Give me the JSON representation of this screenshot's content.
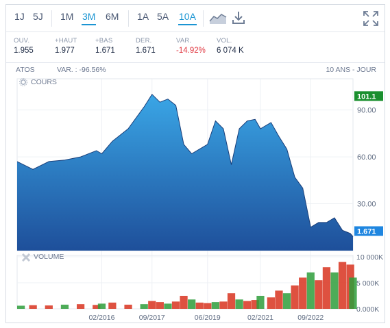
{
  "toolbar": {
    "periods_short": [
      "1J",
      "5J"
    ],
    "periods_mid": [
      "1M",
      "3M",
      "6M"
    ],
    "periods_long": [
      "1A",
      "5A",
      "10A"
    ],
    "active_mid": "3M",
    "active_long": "10A",
    "icons": [
      "chart-type-icon",
      "download-icon",
      "fullscreen-icon"
    ]
  },
  "stats": [
    {
      "label": "OUV.",
      "value": "1.955"
    },
    {
      "label": "+HAUT",
      "value": "1.977"
    },
    {
      "label": "+BAS",
      "value": "1.671"
    },
    {
      "label": "DER.",
      "value": "1.671"
    },
    {
      "label": "VAR.",
      "value": "-14.92%"
    },
    {
      "label": "VOL.",
      "value": "6 074 K"
    }
  ],
  "header": {
    "symbol": "ATOS",
    "variation": "VAR. : -96.56%",
    "range": "10 ANS - JOUR"
  },
  "price_panel": {
    "title": "COURS"
  },
  "volume_panel": {
    "title": "VOLUME"
  },
  "colors": {
    "accent": "#1b95d3",
    "area_top": "#3aa6e6",
    "area_bottom": "#1e4f9a",
    "line": "#1a3f7a",
    "negative": "#e0363f",
    "high_badge": "#1a8f2e",
    "last_badge": "#1f86e0",
    "volume_up": "#2e9e3b",
    "volume_down": "#d8321e"
  },
  "chart_data": [
    {
      "type": "area",
      "title": "COURS",
      "y_ticks": [
        30,
        60,
        90
      ],
      "y_tick_labels": [
        "30.00",
        "60.00",
        "90.00"
      ],
      "ylim": [
        0,
        110
      ],
      "high_badge": "101.1",
      "last_badge": "1.671",
      "x": [
        "2013-06",
        "2013-12",
        "2014-06",
        "2014-12",
        "2015-06",
        "2015-12",
        "2016-02",
        "2016-06",
        "2016-12",
        "2017-06",
        "2017-09",
        "2017-12",
        "2018-03",
        "2018-06",
        "2018-09",
        "2018-12",
        "2019-03",
        "2019-06",
        "2019-09",
        "2019-12",
        "2020-03",
        "2020-06",
        "2020-09",
        "2020-12",
        "2021-02",
        "2021-06",
        "2021-09",
        "2021-12",
        "2022-03",
        "2022-06",
        "2022-09",
        "2022-12",
        "2023-03",
        "2023-06",
        "2023-09",
        "2023-12",
        "2024-01"
      ],
      "series": [
        {
          "values": [
            57,
            52,
            57,
            58,
            60,
            64,
            62,
            70,
            78,
            92,
            100,
            95,
            97,
            93,
            68,
            62,
            65,
            68,
            83,
            78,
            55,
            78,
            83,
            84,
            78,
            82,
            73,
            65,
            47,
            40,
            15,
            18,
            18,
            21,
            13,
            11,
            9
          ]
        }
      ],
      "annotations": [
        "101.1",
        "1.671"
      ]
    },
    {
      "type": "bar",
      "title": "VOLUME",
      "y_ticks": [
        0,
        5000,
        10000
      ],
      "y_tick_labels": [
        "0.000K",
        "5 000K",
        "10 000K"
      ],
      "x_tick_labels": [
        "02/2016",
        "09/2017",
        "06/2019",
        "02/2021",
        "09/2022"
      ],
      "x_ticks": [
        "2016-02",
        "2017-09",
        "2019-06",
        "2021-02",
        "2022-09"
      ],
      "series": [
        {
          "name": "volume",
          "values": [
            600,
            700,
            650,
            800,
            900,
            750,
            1000,
            1200,
            800,
            900,
            1500,
            1300,
            1000,
            1400,
            2500,
            1800,
            1200,
            1100,
            1300,
            1400,
            3000,
            1800,
            1500,
            1700,
            2500,
            2200,
            3500,
            3000,
            4500,
            6000,
            7000,
            5500,
            8000,
            7000,
            9000,
            8500,
            6000
          ]
        }
      ]
    }
  ]
}
